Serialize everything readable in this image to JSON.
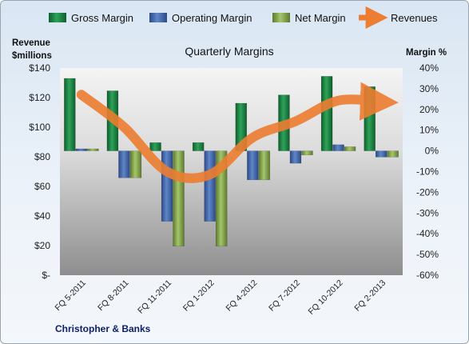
{
  "chart_data": {
    "type": "bar",
    "title": "Quarterly Margins",
    "categories": [
      "FQ 5-2011",
      "FQ 8-2011",
      "FQ 11-2011",
      "FQ 1-2012",
      "FQ 4-2012",
      "FQ 7-2012",
      "FQ 10-2012",
      "FQ 2-2013"
    ],
    "series": [
      {
        "name": "Gross Margin",
        "type": "bar",
        "axis": "right",
        "color": "#1f8a48",
        "values": [
          35,
          29,
          4,
          4,
          23,
          27,
          36,
          31
        ]
      },
      {
        "name": "Operating Margin",
        "type": "bar",
        "axis": "right",
        "color": "#4a6fb5",
        "values": [
          1,
          -13,
          -34,
          -34,
          -14,
          -6,
          3,
          -3
        ]
      },
      {
        "name": "Net Margin",
        "type": "bar",
        "axis": "right",
        "color": "#8fb05a",
        "values": [
          1,
          -13,
          -46,
          -46,
          -14,
          -2,
          2,
          -3
        ]
      },
      {
        "name": "Revenues",
        "type": "line",
        "axis": "left",
        "color": "#ed7d31",
        "values": [
          122,
          100,
          70,
          68,
          93,
          104,
          118,
          117
        ]
      }
    ],
    "y_left": {
      "label": "Revenue\n$millions",
      "min": 0,
      "max": 140,
      "ticks": [
        "$-",
        "$20",
        "$40",
        "$60",
        "$80",
        "$100",
        "$120",
        "$140"
      ]
    },
    "y_right": {
      "label": "Margin %",
      "min": -60,
      "max": 40,
      "ticks": [
        "-60%",
        "-50%",
        "-40%",
        "-30%",
        "-20%",
        "-10%",
        "0%",
        "10%",
        "20%",
        "30%",
        "40%"
      ]
    },
    "legend": "top",
    "grid": false
  },
  "labels": {
    "ylabel_left_line1": "Revenue",
    "ylabel_left_line2": "$millions",
    "ylabel_right": "Margin %",
    "footer": "Christopher & Banks"
  }
}
